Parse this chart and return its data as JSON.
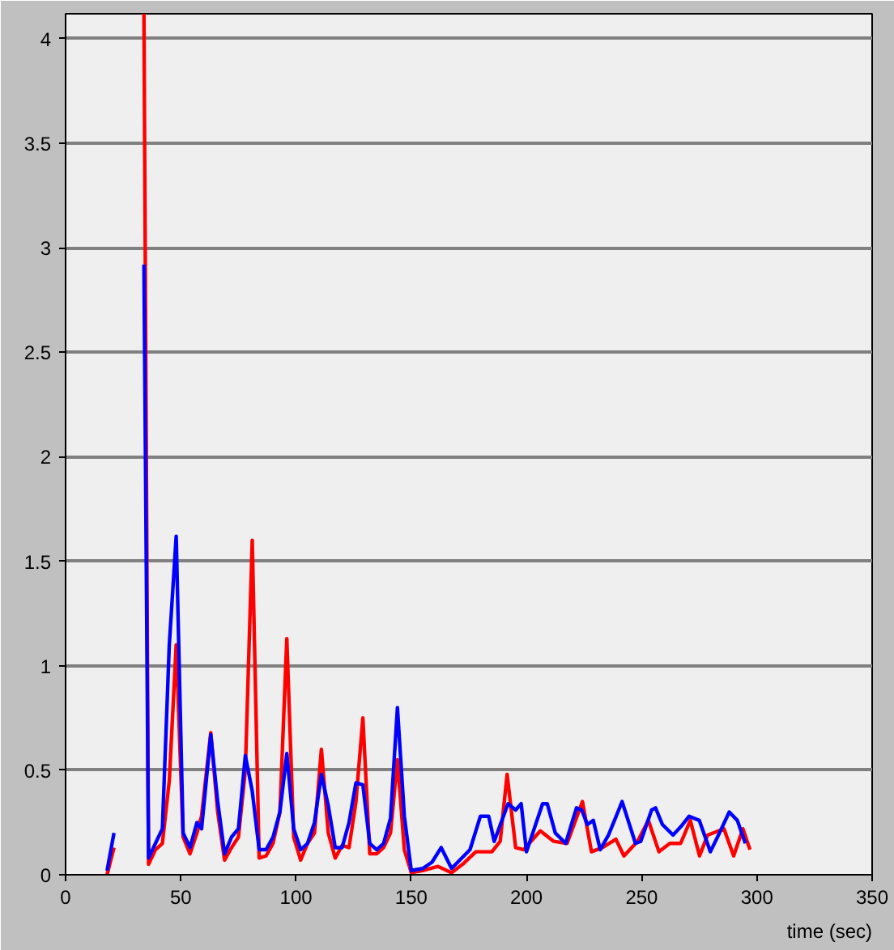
{
  "chart_data": {
    "type": "line",
    "xlabel": "time (sec)",
    "xlim": [
      0,
      350
    ],
    "xticks": [
      0,
      50,
      100,
      150,
      200,
      250,
      300,
      350
    ],
    "ylim": [
      0,
      4.12
    ],
    "yticks": [
      0,
      0.5,
      1,
      1.5,
      2,
      2.5,
      3,
      3.5,
      4
    ],
    "grid": "y",
    "marker": "none",
    "line_style": "solid",
    "series": [
      {
        "color": "#ff0000",
        "x": [
          18,
          21,
          27,
          34,
          36,
          39,
          42,
          45,
          48,
          51,
          54,
          57,
          59,
          63,
          66,
          69,
          72,
          75,
          78,
          81,
          84,
          87,
          90,
          93,
          96,
          99,
          102,
          105,
          108,
          111,
          114,
          117,
          120,
          123,
          126,
          129,
          132,
          135,
          138,
          141,
          144,
          147,
          150,
          155,
          161.6,
          167.5,
          172.3,
          178,
          185,
          188.6,
          191.6,
          195.3,
          198.8,
          206,
          211.8,
          217.6,
          224.3,
          228.2,
          233,
          238.8,
          242.3,
          248.2,
          252.9,
          257.5,
          262.2,
          266.9,
          271.1,
          275.1,
          278.6,
          285.7,
          289.9,
          293.9,
          297
        ],
        "values": [
          0,
          0.13,
          null,
          4.12,
          0.05,
          0.12,
          0.15,
          0.45,
          1.1,
          0.18,
          0.1,
          0.2,
          0.28,
          0.68,
          0.3,
          0.07,
          0.13,
          0.18,
          0.5,
          1.6,
          0.08,
          0.09,
          0.15,
          0.3,
          1.13,
          0.18,
          0.07,
          0.15,
          0.2,
          0.6,
          0.2,
          0.08,
          0.14,
          0.13,
          0.35,
          0.75,
          0.1,
          0.1,
          0.13,
          0.2,
          0.55,
          0.12,
          0.01,
          0.02,
          0.04,
          0.01,
          0.05,
          0.11,
          0.11,
          0.16,
          0.48,
          0.13,
          0.12,
          0.21,
          0.16,
          0.15,
          0.35,
          0.11,
          0.13,
          0.17,
          0.09,
          0.16,
          0.26,
          0.11,
          0.15,
          0.15,
          0.26,
          0.09,
          0.19,
          0.22,
          0.09,
          0.22,
          0.12
        ]
      },
      {
        "color": "#0000ff",
        "x": [
          18,
          21,
          27,
          34,
          36,
          39,
          42,
          45,
          48,
          51,
          54,
          57,
          59,
          63,
          66,
          69,
          72,
          75,
          78,
          81,
          84,
          87,
          90,
          93,
          96,
          99,
          102,
          105,
          108,
          111,
          114,
          117,
          120,
          123,
          126,
          129,
          132,
          135,
          138,
          141,
          144,
          147,
          150,
          155,
          159,
          163,
          167.5,
          175.5,
          180,
          183.6,
          186,
          192,
          195.3,
          197.7,
          200,
          207,
          209,
          212.5,
          217,
          221.7,
          224,
          226.4,
          229,
          232,
          235.6,
          241.5,
          247.3,
          249.6,
          254.3,
          256,
          259,
          263.6,
          267,
          270.6,
          275,
          279.8,
          283.3,
          288,
          291.5,
          295
        ],
        "values": [
          0.02,
          0.2,
          null,
          2.92,
          0.08,
          0.15,
          0.22,
          1.1,
          1.62,
          0.2,
          0.13,
          0.25,
          0.22,
          0.67,
          0.35,
          0.1,
          0.18,
          0.22,
          0.57,
          0.4,
          0.12,
          0.12,
          0.18,
          0.3,
          0.58,
          0.22,
          0.12,
          0.15,
          0.25,
          0.48,
          0.33,
          0.13,
          0.13,
          0.25,
          0.44,
          0.43,
          0.15,
          0.12,
          0.15,
          0.27,
          0.8,
          0.28,
          0.02,
          0.03,
          0.06,
          0.13,
          0.03,
          0.12,
          0.28,
          0.28,
          0.16,
          0.34,
          0.31,
          0.34,
          0.11,
          0.34,
          0.34,
          0.2,
          0.15,
          0.32,
          0.31,
          0.24,
          0.26,
          0.12,
          0.19,
          0.35,
          0.15,
          0.16,
          0.31,
          0.32,
          0.24,
          0.19,
          0.23,
          0.28,
          0.26,
          0.11,
          0.19,
          0.3,
          0.26,
          0.15
        ]
      }
    ]
  }
}
